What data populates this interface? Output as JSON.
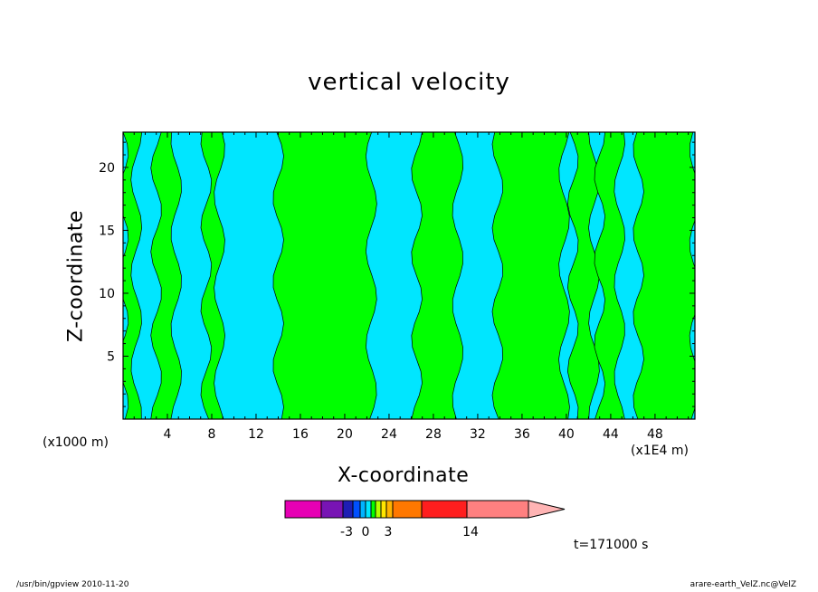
{
  "chart_data": {
    "type": "heatmap",
    "title": "vertical velocity",
    "xlabel": "X-coordinate",
    "ylabel": "Z-coordinate",
    "x_scale_label": "(x1000 m)",
    "x_scale_label_2": "(x1E4 m)",
    "x_ticks": [
      "4",
      "8",
      "12",
      "16",
      "20",
      "24",
      "28",
      "32",
      "36",
      "40",
      "44",
      "48"
    ],
    "x_tick_values": [
      4,
      8,
      12,
      16,
      20,
      24,
      28,
      32,
      36,
      40,
      44,
      48
    ],
    "y_ticks": [
      "5",
      "10",
      "15",
      "20"
    ],
    "y_tick_values": [
      5,
      10,
      15,
      20
    ],
    "xlim": [
      0,
      51.6
    ],
    "ylim": [
      0,
      22.8
    ],
    "colors": {
      "positive": "#00ff00",
      "negative": "#00e6ff",
      "contour": "#000000"
    },
    "region_boundaries_x": [
      0,
      1.2,
      3,
      4.8,
      7.5,
      8.7,
      14,
      22.4,
      26.5,
      30.2,
      33.8,
      39.8,
      40.6,
      42.5,
      43,
      44.8,
      46.5,
      51.6
    ],
    "region_signs": [
      1,
      0,
      1,
      0,
      1,
      0,
      1,
      0,
      1,
      0,
      1,
      0,
      1,
      0,
      1,
      0,
      1
    ],
    "colorbar": {
      "colors": [
        "#e600b4",
        "#7814b4",
        "#1e1eb4",
        "#0050ff",
        "#00b4ff",
        "#00e6ff",
        "#00ff00",
        "#b4ff00",
        "#ffe600",
        "#ffb400",
        "#ff7800",
        "#ff1e1e",
        "#ff8080"
      ],
      "bin_widths": [
        40,
        24,
        11,
        8,
        6,
        6,
        5,
        6,
        6,
        7,
        32,
        50,
        68
      ],
      "labels": [
        "-3",
        "0",
        "3",
        "14"
      ],
      "label_values": [
        -3,
        0,
        3,
        14
      ]
    },
    "time_label": "t=171000 s"
  },
  "footer": {
    "left": "/usr/bin/gpview   2010-11-20",
    "right": "arare-earth_VelZ.nc@VelZ"
  }
}
